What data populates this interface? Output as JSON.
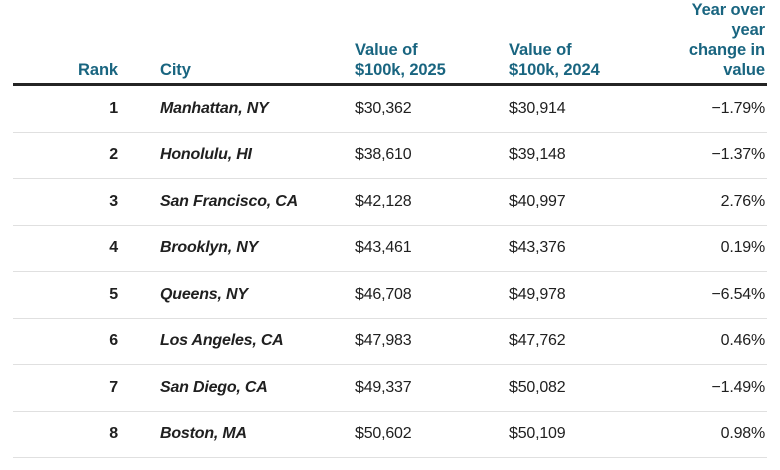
{
  "colors": {
    "header_text": "#196580",
    "body_text": "#202020",
    "header_rule": "#242424",
    "row_divider": "#e0e0e0",
    "background": "#ffffff"
  },
  "table": {
    "headers": {
      "rank": "Rank",
      "city": "City",
      "value_2025": "Value of\n$100k, 2025",
      "value_2024": "Value of\n$100k, 2024",
      "yoy_change": "Year over\nyear\nchange in\nvalue"
    },
    "rows": [
      {
        "rank": "1",
        "city": "Manhattan, NY",
        "value_2025": "$30,362",
        "value_2024": "$30,914",
        "yoy_change": "−1.79%"
      },
      {
        "rank": "2",
        "city": "Honolulu, HI",
        "value_2025": "$38,610",
        "value_2024": "$39,148",
        "yoy_change": "−1.37%"
      },
      {
        "rank": "3",
        "city": "San Francisco, CA",
        "value_2025": "$42,128",
        "value_2024": "$40,997",
        "yoy_change": "2.76%"
      },
      {
        "rank": "4",
        "city": "Brooklyn, NY",
        "value_2025": "$43,461",
        "value_2024": "$43,376",
        "yoy_change": "0.19%"
      },
      {
        "rank": "5",
        "city": "Queens, NY",
        "value_2025": "$46,708",
        "value_2024": "$49,978",
        "yoy_change": "−6.54%"
      },
      {
        "rank": "6",
        "city": "Los Angeles, CA",
        "value_2025": "$47,983",
        "value_2024": "$47,762",
        "yoy_change": "0.46%"
      },
      {
        "rank": "7",
        "city": "San Diego, CA",
        "value_2025": "$49,337",
        "value_2024": "$50,082",
        "yoy_change": "−1.49%"
      },
      {
        "rank": "8",
        "city": "Boston, MA",
        "value_2025": "$50,602",
        "value_2024": "$50,109",
        "yoy_change": "0.98%"
      }
    ]
  },
  "chart_data": {
    "type": "table",
    "title": "",
    "columns": [
      "Rank",
      "City",
      "Value of $100k, 2025",
      "Value of $100k, 2024",
      "Year over year change in value"
    ],
    "rows": [
      [
        1,
        "Manhattan, NY",
        30362,
        30914,
        -1.79
      ],
      [
        2,
        "Honolulu, HI",
        38610,
        39148,
        -1.37
      ],
      [
        3,
        "San Francisco, CA",
        42128,
        40997,
        2.76
      ],
      [
        4,
        "Brooklyn, NY",
        43461,
        43376,
        0.19
      ],
      [
        5,
        "Queens, NY",
        46708,
        49978,
        -6.54
      ],
      [
        6,
        "Los Angeles, CA",
        47983,
        47762,
        0.46
      ],
      [
        7,
        "San Diego, CA",
        49337,
        50082,
        -1.49
      ],
      [
        8,
        "Boston, MA",
        50602,
        50109,
        0.98
      ]
    ]
  }
}
